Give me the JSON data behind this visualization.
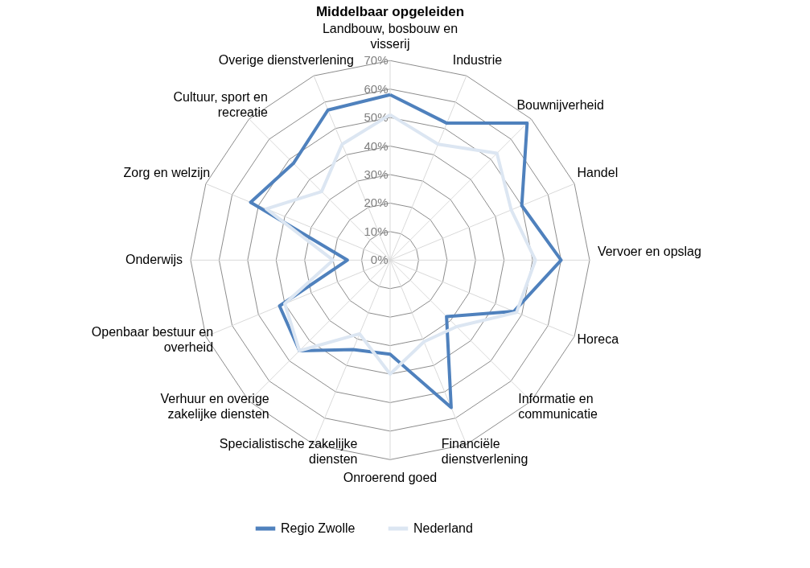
{
  "chart_data": {
    "type": "radar",
    "title": "Middelbaar opgeleiden",
    "categories": [
      "Landbouw, bosbouw en visserij",
      "Industrie",
      "Bouwnijverheid",
      "Handel",
      "Vervoer en opslag",
      "Horeca",
      "Informatie en communicatie",
      "Financiële dienstverlening",
      "Onroerend goed",
      "Specialistische zakelijke diensten",
      "Verhuur en overige zakelijke diensten",
      "Openbaar bestuur en overheid",
      "Onderwijs",
      "Zorg en welzijn",
      "Cultuur, sport en recreatie",
      "Overige dienstverlening"
    ],
    "series": [
      {
        "name": "Regio Zwolle",
        "color": "#4f81bd",
        "values": [
          58,
          52,
          68,
          50,
          60,
          47,
          28,
          56,
          33,
          34,
          45,
          42,
          15,
          53,
          48,
          57
        ]
      },
      {
        "name": "Nederland",
        "color": "#dce6f2",
        "values": [
          51,
          44,
          53,
          46,
          51,
          48,
          33,
          31,
          40,
          28,
          45,
          40,
          20,
          47,
          34,
          44
        ]
      }
    ],
    "ylim": [
      0,
      70
    ],
    "yticks": [
      {
        "value": 0,
        "label": "0%"
      },
      {
        "value": 10,
        "label": "10%"
      },
      {
        "value": 20,
        "label": "20%"
      },
      {
        "value": 30,
        "label": "30%"
      },
      {
        "value": 40,
        "label": "40%"
      },
      {
        "value": 50,
        "label": "50%"
      },
      {
        "value": 60,
        "label": "60%"
      },
      {
        "value": 70,
        "label": "70%"
      }
    ],
    "grid": true,
    "legend": "bottom"
  }
}
